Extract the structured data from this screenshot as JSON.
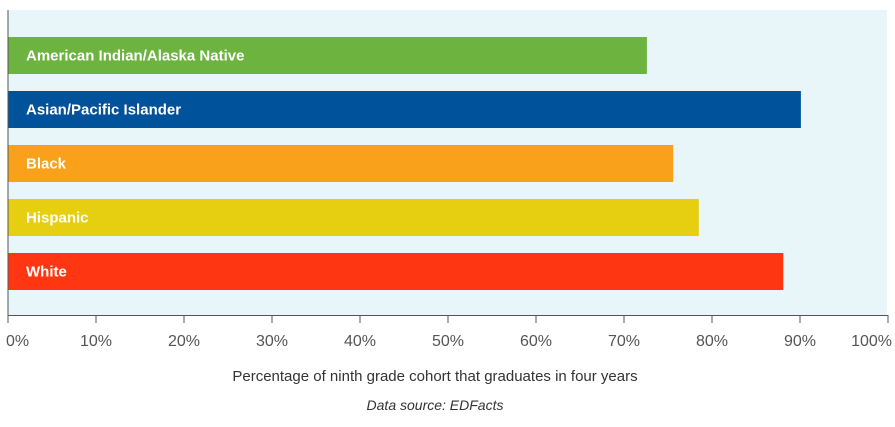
{
  "chart_data": {
    "type": "bar",
    "orientation": "horizontal",
    "categories": [
      "American Indian/Alaska Native",
      "Asian/Pacific Islander",
      "Black",
      "Hispanic",
      "White"
    ],
    "values": [
      72.6,
      90.1,
      75.6,
      78.5,
      88.1
    ],
    "colors": [
      "#6db33f",
      "#00529b",
      "#f9a11b",
      "#e6cf11",
      "#ff3611"
    ],
    "xlim": [
      0,
      100
    ],
    "x_ticks": [
      0,
      10,
      20,
      30,
      40,
      50,
      60,
      70,
      80,
      90,
      100
    ],
    "tick_labels": [
      "0%",
      "10%",
      "20%",
      "30%",
      "40%",
      "50%",
      "60%",
      "70%",
      "80%",
      "90%",
      "100%"
    ],
    "xlabel": "Percentage of ninth grade cohort that graduates in four years",
    "source": "Data source: EDFacts",
    "plot_background": "#e8f6fa",
    "grid": false,
    "legend": "none"
  }
}
